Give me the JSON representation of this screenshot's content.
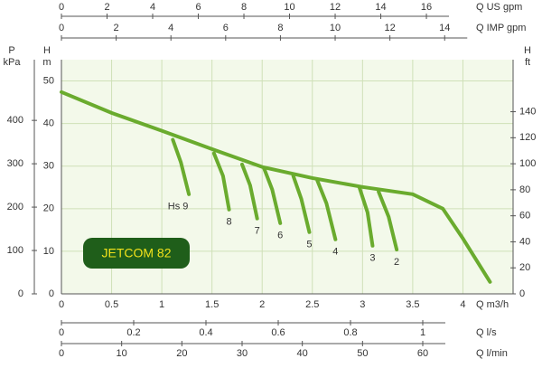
{
  "chart_data": {
    "type": "line",
    "xlabel": "Q m3/h",
    "ylabel": "H",
    "yunit": "m",
    "xlim": [
      0,
      4.5
    ],
    "xticks": [
      0,
      0.5,
      1,
      1.5,
      2,
      2.5,
      3,
      3.5,
      4
    ],
    "ylim": [
      0,
      55
    ],
    "yticks": [
      0,
      10,
      20,
      30,
      40,
      50
    ],
    "grid": true,
    "annotation": "JETCOM 82",
    "series": [
      {
        "color": "#6aab2e",
        "x": [
          0,
          0.5,
          1,
          1.5,
          2,
          2.5,
          3,
          3.5,
          3.8,
          4,
          4.27
        ],
        "values": [
          47.4,
          42.5,
          38.3,
          34,
          29.8,
          27.2,
          25.1,
          23.4,
          20,
          13,
          2.8
        ]
      },
      {
        "name": "Hs 9",
        "color": "#6aab2e",
        "x": [
          1.11,
          1.19,
          1.27
        ],
        "values": [
          36.2,
          30.9,
          23.4
        ]
      },
      {
        "name": "8",
        "color": "#6aab2e",
        "x": [
          1.52,
          1.61,
          1.67
        ],
        "values": [
          33,
          27.7,
          19.8
        ]
      },
      {
        "name": "7",
        "color": "#6aab2e",
        "x": [
          1.8,
          1.88,
          1.95
        ],
        "values": [
          30.4,
          25.5,
          17.7
        ]
      },
      {
        "name": "6",
        "color": "#6aab2e",
        "x": [
          2.02,
          2.1,
          2.18
        ],
        "values": [
          29.4,
          24.5,
          16.6
        ]
      },
      {
        "name": "5",
        "color": "#6aab2e",
        "x": [
          2.31,
          2.39,
          2.47
        ],
        "values": [
          27.7,
          22.3,
          14.5
        ]
      },
      {
        "name": "4",
        "color": "#6aab2e",
        "x": [
          2.55,
          2.64,
          2.73
        ],
        "values": [
          26.6,
          21.3,
          12.8
        ]
      },
      {
        "name": "3",
        "color": "#6aab2e",
        "x": [
          2.97,
          3.05,
          3.1
        ],
        "values": [
          24.9,
          19.1,
          11.3
        ]
      },
      {
        "name": "2",
        "color": "#6aab2e",
        "x": [
          3.16,
          3.26,
          3.34
        ],
        "values": [
          24,
          18.1,
          10.4
        ]
      }
    ],
    "top_axes": [
      {
        "label": "Q US gpm",
        "lim": [
          0,
          19.8
        ],
        "ticks": [
          0,
          2,
          4,
          6,
          8,
          10,
          12,
          14,
          16
        ]
      },
      {
        "label": "Q IMP gpm",
        "lim": [
          0,
          16.5
        ],
        "ticks": [
          0,
          2,
          4,
          6,
          8,
          10,
          12,
          14
        ]
      }
    ],
    "bottom_axes": [
      {
        "label": "Q l/s",
        "lim": [
          0,
          1.25
        ],
        "ticks": [
          0,
          0.2,
          0.4,
          0.6,
          0.8,
          1
        ]
      },
      {
        "label": "Q l/min",
        "lim": [
          0,
          75
        ],
        "ticks": [
          0,
          10,
          20,
          30,
          40,
          50,
          60
        ]
      }
    ],
    "left_axis": {
      "label": "P",
      "unit": "kPa",
      "lim": [
        0,
        540
      ],
      "ticks": [
        0,
        100,
        200,
        300,
        400
      ]
    },
    "right_axis": {
      "label": "H",
      "unit": "ft",
      "lim": [
        0,
        180
      ],
      "ticks": [
        0,
        20,
        40,
        60,
        80,
        100,
        120,
        140
      ]
    }
  }
}
